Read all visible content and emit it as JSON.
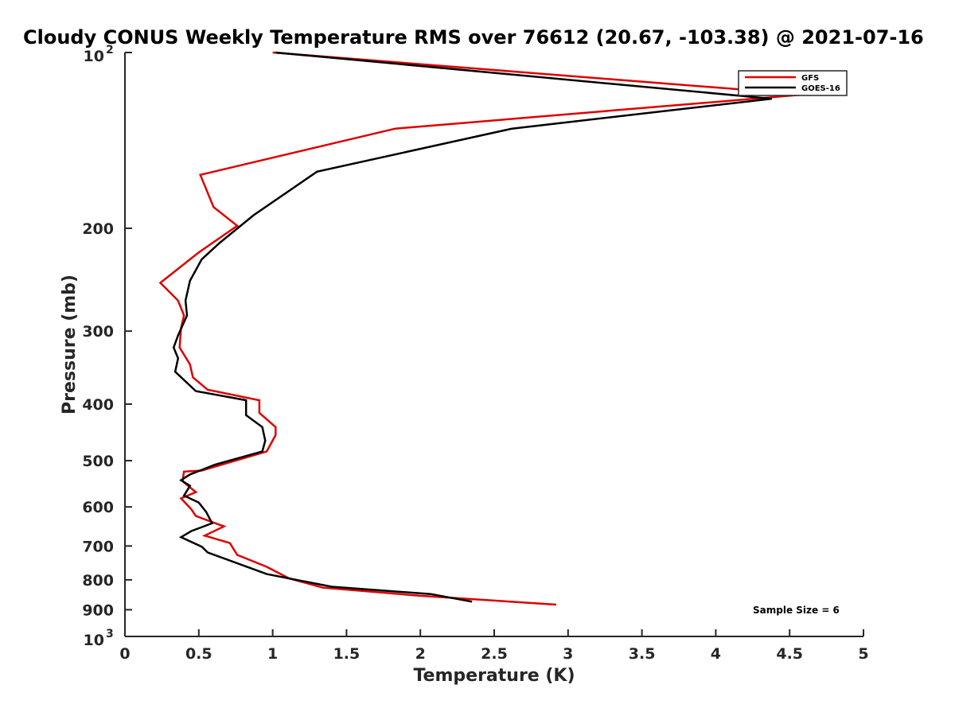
{
  "chart_data": {
    "type": "line",
    "title": "Cloudy CONUS Weekly Temperature RMS over 76612 (20.67, -103.38) @ 2021-07-16",
    "xlabel": "Temperature (K)",
    "ylabel": "Pressure (mb)",
    "xlim": [
      0,
      5
    ],
    "ylim": [
      100,
      1000
    ],
    "yscale": "log",
    "y_reversed": true,
    "x_ticks": [
      "0",
      "0.5",
      "1",
      "1.5",
      "2",
      "2.5",
      "3",
      "3.5",
      "4",
      "4.5",
      "5"
    ],
    "y_ticks": [
      {
        "value": 100,
        "base": "10",
        "exp": "2"
      },
      {
        "value": 200,
        "label": "200"
      },
      {
        "value": 300,
        "label": "300"
      },
      {
        "value": 400,
        "label": "400"
      },
      {
        "value": 500,
        "label": "500"
      },
      {
        "value": 600,
        "label": "600"
      },
      {
        "value": 700,
        "label": "700"
      },
      {
        "value": 800,
        "label": "800"
      },
      {
        "value": 900,
        "label": "900"
      },
      {
        "value": 1000,
        "base": "10",
        "exp": "3"
      }
    ],
    "legend": {
      "position": "top-right"
    },
    "annotation": "Sample Size = 6",
    "series": [
      {
        "name": "GFS",
        "color": "#dd0000",
        "points": [
          [
            1.0,
            100
          ],
          [
            4.6,
            118
          ],
          [
            1.83,
            135
          ],
          [
            0.51,
            162
          ],
          [
            0.6,
            184
          ],
          [
            0.76,
            198
          ],
          [
            0.5,
            220
          ],
          [
            0.24,
            248
          ],
          [
            0.36,
            266
          ],
          [
            0.4,
            282
          ],
          [
            0.38,
            296
          ],
          [
            0.37,
            320
          ],
          [
            0.44,
            342
          ],
          [
            0.46,
            360
          ],
          [
            0.56,
            378
          ],
          [
            0.91,
            394
          ],
          [
            0.91,
            414
          ],
          [
            1.02,
            438
          ],
          [
            1.02,
            452
          ],
          [
            0.96,
            482
          ],
          [
            0.52,
            520
          ],
          [
            0.4,
            522
          ],
          [
            0.39,
            542
          ],
          [
            0.48,
            566
          ],
          [
            0.38,
            580
          ],
          [
            0.45,
            606
          ],
          [
            0.48,
            622
          ],
          [
            0.67,
            648
          ],
          [
            0.54,
            672
          ],
          [
            0.71,
            692
          ],
          [
            0.76,
            725
          ],
          [
            0.96,
            760
          ],
          [
            1.11,
            795
          ],
          [
            1.34,
            825
          ],
          [
            2.0,
            852
          ],
          [
            2.92,
            882
          ]
        ]
      },
      {
        "name": "GOES-16",
        "color": "#000000",
        "points": [
          [
            1.02,
            100
          ],
          [
            4.38,
            120
          ],
          [
            2.62,
            135
          ],
          [
            1.3,
            160
          ],
          [
            0.87,
            190
          ],
          [
            0.64,
            212
          ],
          [
            0.52,
            226
          ],
          [
            0.44,
            246
          ],
          [
            0.41,
            266
          ],
          [
            0.42,
            282
          ],
          [
            0.36,
            305
          ],
          [
            0.33,
            320
          ],
          [
            0.36,
            334
          ],
          [
            0.34,
            352
          ],
          [
            0.48,
            380
          ],
          [
            0.82,
            394
          ],
          [
            0.82,
            418
          ],
          [
            0.93,
            438
          ],
          [
            0.95,
            462
          ],
          [
            0.93,
            482
          ],
          [
            0.61,
            508
          ],
          [
            0.44,
            528
          ],
          [
            0.38,
            540
          ],
          [
            0.44,
            552
          ],
          [
            0.4,
            574
          ],
          [
            0.5,
            590
          ],
          [
            0.55,
            612
          ],
          [
            0.59,
            640
          ],
          [
            0.45,
            660
          ],
          [
            0.38,
            676
          ],
          [
            0.52,
            702
          ],
          [
            0.56,
            718
          ],
          [
            0.96,
            782
          ],
          [
            1.4,
            822
          ],
          [
            2.07,
            846
          ],
          [
            2.35,
            872
          ]
        ]
      }
    ]
  }
}
